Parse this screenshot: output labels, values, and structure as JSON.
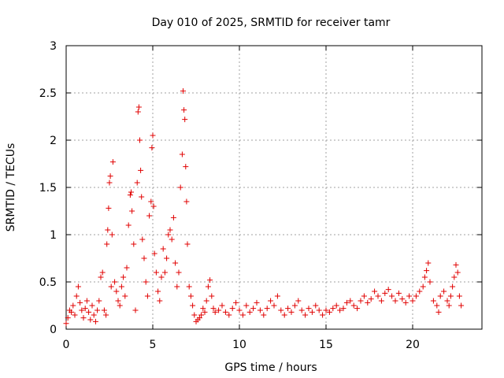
{
  "chart_data": {
    "type": "scatter",
    "title": "Day 010 of 2025, SRMTID for receiver tamr",
    "xlabel": "GPS time / hours",
    "ylabel": "SRMTID / TECUs",
    "xlim": [
      0,
      24
    ],
    "ylim": [
      0,
      3
    ],
    "xticks": [
      0,
      5,
      10,
      15,
      20
    ],
    "xtick_labels": [
      "0",
      "5",
      "10",
      "15",
      "20"
    ],
    "yticks": [
      0,
      0.5,
      1,
      1.5,
      2,
      2.5,
      3
    ],
    "ytick_labels": [
      "0",
      "0.5",
      "1",
      "1.5",
      "2",
      "2.5",
      "3"
    ],
    "grid": true,
    "marker": "+",
    "color": "#e00000",
    "series": [
      {
        "name": "SRMTID",
        "points": [
          [
            0.0,
            0.06
          ],
          [
            0.1,
            0.12
          ],
          [
            0.2,
            0.2
          ],
          [
            0.3,
            0.18
          ],
          [
            0.4,
            0.25
          ],
          [
            0.5,
            0.15
          ],
          [
            0.6,
            0.35
          ],
          [
            0.7,
            0.45
          ],
          [
            0.8,
            0.28
          ],
          [
            0.9,
            0.2
          ],
          [
            1.0,
            0.12
          ],
          [
            1.1,
            0.22
          ],
          [
            1.2,
            0.3
          ],
          [
            1.3,
            0.18
          ],
          [
            1.4,
            0.1
          ],
          [
            1.5,
            0.25
          ],
          [
            1.6,
            0.15
          ],
          [
            1.7,
            0.08
          ],
          [
            1.8,
            0.2
          ],
          [
            1.9,
            0.3
          ],
          [
            2.0,
            0.55
          ],
          [
            2.1,
            0.6
          ],
          [
            2.2,
            0.2
          ],
          [
            2.3,
            0.15
          ],
          [
            2.35,
            0.9
          ],
          [
            2.4,
            1.05
          ],
          [
            2.45,
            1.28
          ],
          [
            2.5,
            1.55
          ],
          [
            2.55,
            1.62
          ],
          [
            2.6,
            0.45
          ],
          [
            2.65,
            1.0
          ],
          [
            2.7,
            1.77
          ],
          [
            2.8,
            0.5
          ],
          [
            2.9,
            0.4
          ],
          [
            3.0,
            0.3
          ],
          [
            3.1,
            0.25
          ],
          [
            3.2,
            0.45
          ],
          [
            3.3,
            0.55
          ],
          [
            3.4,
            0.35
          ],
          [
            3.5,
            0.65
          ],
          [
            3.6,
            1.1
          ],
          [
            3.7,
            1.42
          ],
          [
            3.75,
            1.45
          ],
          [
            3.8,
            1.25
          ],
          [
            3.9,
            0.9
          ],
          [
            4.0,
            0.2
          ],
          [
            4.1,
            1.55
          ],
          [
            4.15,
            2.3
          ],
          [
            4.2,
            2.35
          ],
          [
            4.25,
            2.0
          ],
          [
            4.3,
            1.68
          ],
          [
            4.35,
            1.4
          ],
          [
            4.4,
            0.95
          ],
          [
            4.5,
            0.75
          ],
          [
            4.6,
            0.5
          ],
          [
            4.7,
            0.35
          ],
          [
            4.8,
            1.2
          ],
          [
            4.9,
            1.35
          ],
          [
            4.95,
            1.92
          ],
          [
            5.0,
            2.05
          ],
          [
            5.05,
            1.3
          ],
          [
            5.1,
            0.8
          ],
          [
            5.2,
            0.6
          ],
          [
            5.3,
            0.4
          ],
          [
            5.4,
            0.3
          ],
          [
            5.5,
            0.55
          ],
          [
            5.6,
            0.85
          ],
          [
            5.7,
            0.6
          ],
          [
            5.8,
            0.75
          ],
          [
            5.9,
            1.0
          ],
          [
            6.0,
            1.05
          ],
          [
            6.1,
            0.95
          ],
          [
            6.2,
            1.18
          ],
          [
            6.3,
            0.7
          ],
          [
            6.4,
            0.45
          ],
          [
            6.5,
            0.6
          ],
          [
            6.6,
            1.5
          ],
          [
            6.7,
            1.85
          ],
          [
            6.75,
            2.52
          ],
          [
            6.8,
            2.32
          ],
          [
            6.85,
            2.22
          ],
          [
            6.9,
            1.72
          ],
          [
            6.95,
            1.35
          ],
          [
            7.0,
            0.9
          ],
          [
            7.1,
            0.45
          ],
          [
            7.2,
            0.35
          ],
          [
            7.3,
            0.25
          ],
          [
            7.4,
            0.15
          ],
          [
            7.5,
            0.08
          ],
          [
            7.6,
            0.1
          ],
          [
            7.7,
            0.12
          ],
          [
            7.8,
            0.15
          ],
          [
            7.9,
            0.22
          ],
          [
            8.0,
            0.18
          ],
          [
            8.1,
            0.3
          ],
          [
            8.2,
            0.45
          ],
          [
            8.3,
            0.52
          ],
          [
            8.4,
            0.35
          ],
          [
            8.5,
            0.22
          ],
          [
            8.6,
            0.18
          ],
          [
            8.8,
            0.2
          ],
          [
            9.0,
            0.25
          ],
          [
            9.2,
            0.18
          ],
          [
            9.4,
            0.15
          ],
          [
            9.6,
            0.22
          ],
          [
            9.8,
            0.28
          ],
          [
            10.0,
            0.2
          ],
          [
            10.2,
            0.15
          ],
          [
            10.4,
            0.25
          ],
          [
            10.6,
            0.18
          ],
          [
            10.8,
            0.22
          ],
          [
            11.0,
            0.28
          ],
          [
            11.2,
            0.2
          ],
          [
            11.4,
            0.15
          ],
          [
            11.6,
            0.22
          ],
          [
            11.8,
            0.3
          ],
          [
            12.0,
            0.25
          ],
          [
            12.2,
            0.35
          ],
          [
            12.4,
            0.2
          ],
          [
            12.6,
            0.15
          ],
          [
            12.8,
            0.22
          ],
          [
            13.0,
            0.18
          ],
          [
            13.2,
            0.25
          ],
          [
            13.4,
            0.3
          ],
          [
            13.6,
            0.2
          ],
          [
            13.8,
            0.15
          ],
          [
            14.0,
            0.22
          ],
          [
            14.2,
            0.18
          ],
          [
            14.4,
            0.25
          ],
          [
            14.6,
            0.2
          ],
          [
            14.8,
            0.15
          ],
          [
            15.0,
            0.2
          ],
          [
            15.2,
            0.18
          ],
          [
            15.4,
            0.22
          ],
          [
            15.6,
            0.25
          ],
          [
            15.8,
            0.2
          ],
          [
            16.0,
            0.22
          ],
          [
            16.2,
            0.28
          ],
          [
            16.4,
            0.3
          ],
          [
            16.6,
            0.25
          ],
          [
            16.8,
            0.22
          ],
          [
            17.0,
            0.3
          ],
          [
            17.2,
            0.35
          ],
          [
            17.4,
            0.28
          ],
          [
            17.6,
            0.32
          ],
          [
            17.8,
            0.4
          ],
          [
            18.0,
            0.35
          ],
          [
            18.2,
            0.3
          ],
          [
            18.4,
            0.38
          ],
          [
            18.6,
            0.42
          ],
          [
            18.8,
            0.35
          ],
          [
            19.0,
            0.3
          ],
          [
            19.2,
            0.38
          ],
          [
            19.4,
            0.32
          ],
          [
            19.6,
            0.28
          ],
          [
            19.8,
            0.35
          ],
          [
            20.0,
            0.3
          ],
          [
            20.2,
            0.35
          ],
          [
            20.4,
            0.4
          ],
          [
            20.6,
            0.45
          ],
          [
            20.7,
            0.55
          ],
          [
            20.8,
            0.62
          ],
          [
            20.9,
            0.7
          ],
          [
            21.0,
            0.5
          ],
          [
            21.2,
            0.3
          ],
          [
            21.4,
            0.25
          ],
          [
            21.5,
            0.18
          ],
          [
            21.6,
            0.35
          ],
          [
            21.8,
            0.4
          ],
          [
            22.0,
            0.3
          ],
          [
            22.1,
            0.25
          ],
          [
            22.2,
            0.35
          ],
          [
            22.3,
            0.45
          ],
          [
            22.4,
            0.55
          ],
          [
            22.5,
            0.68
          ],
          [
            22.6,
            0.6
          ],
          [
            22.7,
            0.35
          ],
          [
            22.8,
            0.25
          ]
        ]
      }
    ]
  }
}
